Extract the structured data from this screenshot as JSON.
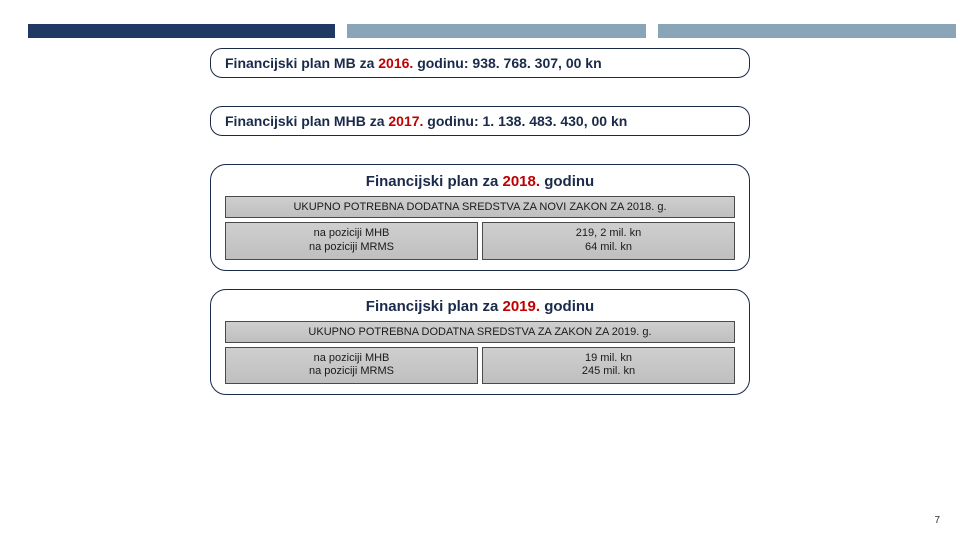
{
  "topbar": {
    "segments": [
      {
        "width_pct": 34,
        "color": "#1f3864"
      },
      {
        "width_pct": 33,
        "color": "#8aa4b8"
      },
      {
        "width_pct": 33,
        "color": "#8aa4b8"
      }
    ]
  },
  "pill1": {
    "pre": "Financijski plan MB za ",
    "year": "2016.",
    "mid": " godinu: ",
    "amount": " 938. 768. 307, 00 kn"
  },
  "pill2": {
    "pre": "Financijski plan MHB za ",
    "year": "2017.",
    "mid": " godinu: ",
    "amount": " 1. 138. 483. 430, 00 kn"
  },
  "block2018": {
    "title_pre": "Financijski plan za ",
    "title_year": "2018.",
    "title_post": " godinu",
    "band": "UKUPNO POTREBNA DODATNA SREDSTVA ZA NOVI ZAKON ZA 2018. g.",
    "left_l1": "na poziciji MHB",
    "left_l2": "na poziciji MRMS",
    "right_l1": "219, 2 mil. kn",
    "right_l2": "64 mil. kn"
  },
  "block2019": {
    "title_pre": "Financijski plan za ",
    "title_year": "2019.",
    "title_post": " godinu",
    "band": "UKUPNO POTREBNA DODATNA SREDSTVA ZA ZAKON ZA 2019. g.",
    "left_l1": "na poziciji MHB",
    "left_l2": "na poziciji MRMS",
    "right_l1": "19  mil. kn",
    "right_l2": "245 mil. kn"
  },
  "page_number": "7",
  "colors": {
    "slide_bg": "#ffffff",
    "text_dark": "#1a2a4a",
    "accent_red": "#c00000",
    "border": "#1a2a4a",
    "band_border": "#4a4a4a"
  }
}
